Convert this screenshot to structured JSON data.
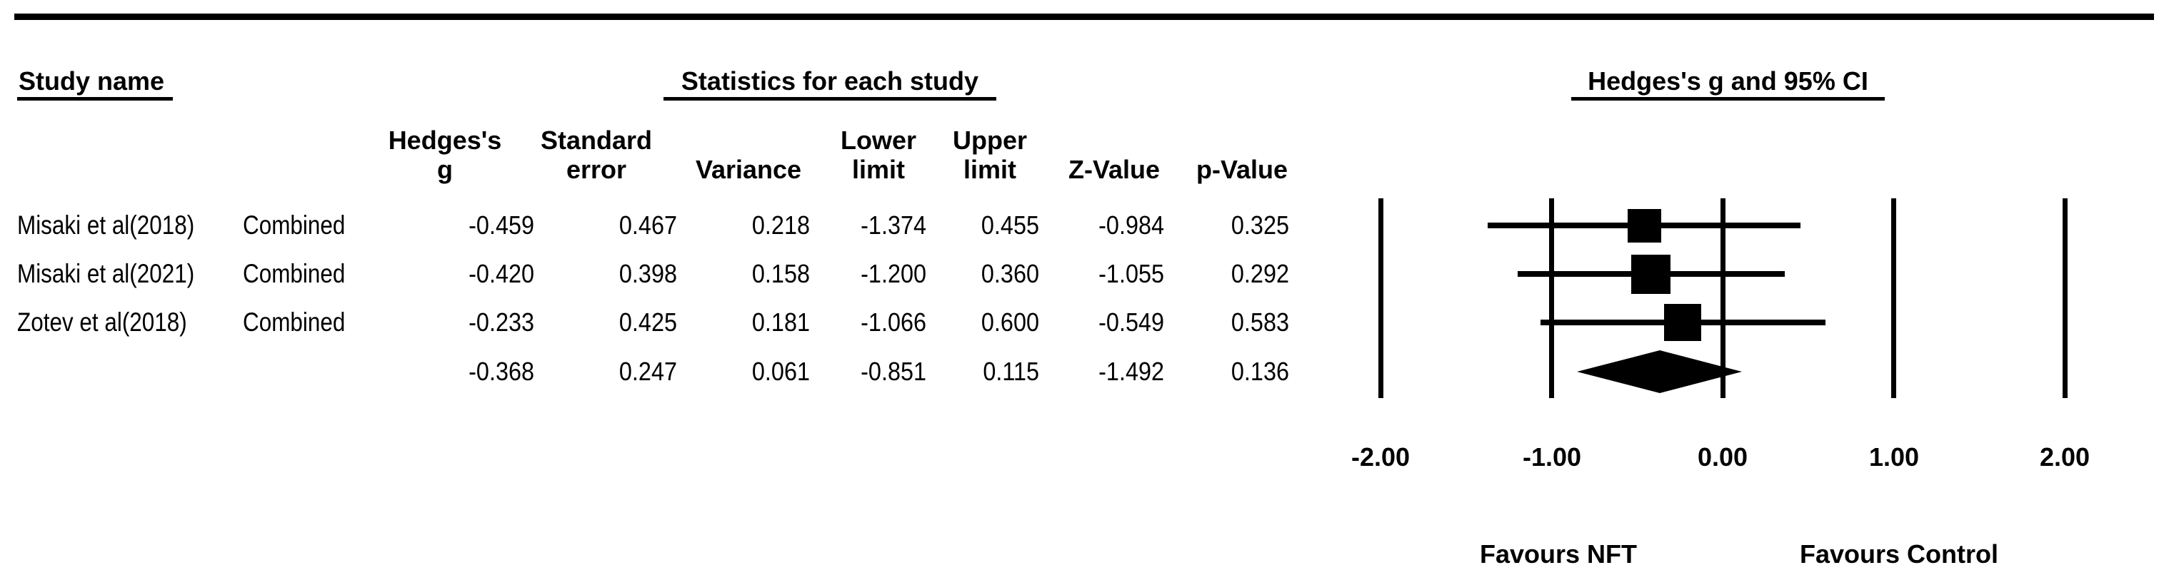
{
  "figure": {
    "section_headers": {
      "study_name": "Study name",
      "statistics": "Statistics for each study",
      "ci": "Hedges's g and 95% CI"
    },
    "table": {
      "columns": [
        {
          "line1": "Hedges's",
          "line2": "g"
        },
        {
          "line1": "Standard",
          "line2": "error"
        },
        {
          "line1": "",
          "line2": "Variance"
        },
        {
          "line1": "Lower",
          "line2": "limit"
        },
        {
          "line1": "Upper",
          "line2": "limit"
        },
        {
          "line1": "",
          "line2": "Z-Value"
        },
        {
          "line1": "",
          "line2": "p-Value"
        }
      ]
    }
  },
  "chart_data": {
    "type": "forest",
    "effect_measure": "Hedges's g",
    "x_axis": {
      "min": -2.0,
      "max": 2.0,
      "ticks": [
        -2.0,
        -1.0,
        0.0,
        1.0,
        2.0
      ],
      "tick_labels": [
        "-2.00",
        "-1.00",
        "0.00",
        "1.00",
        "2.00"
      ]
    },
    "footer_labels": {
      "left": "Favours NFT",
      "right": "Favours Control"
    },
    "studies": [
      {
        "name": "Misaki et al(2018)",
        "group": "Combined",
        "g": -0.459,
        "se": 0.467,
        "variance": 0.218,
        "lower": -1.374,
        "upper": 0.455,
        "z": -0.984,
        "p": 0.325
      },
      {
        "name": "Misaki et al(2021)",
        "group": "Combined",
        "g": -0.42,
        "se": 0.398,
        "variance": 0.158,
        "lower": -1.2,
        "upper": 0.36,
        "z": -1.055,
        "p": 0.292
      },
      {
        "name": "Zotev et al(2018)",
        "group": "Combined",
        "g": -0.233,
        "se": 0.425,
        "variance": 0.181,
        "lower": -1.066,
        "upper": 0.6,
        "z": -0.549,
        "p": 0.583
      }
    ],
    "summary": {
      "name": "",
      "group": "",
      "g": -0.368,
      "se": 0.247,
      "variance": 0.061,
      "lower": -0.851,
      "upper": 0.115,
      "z": -1.492,
      "p": 0.136
    }
  }
}
